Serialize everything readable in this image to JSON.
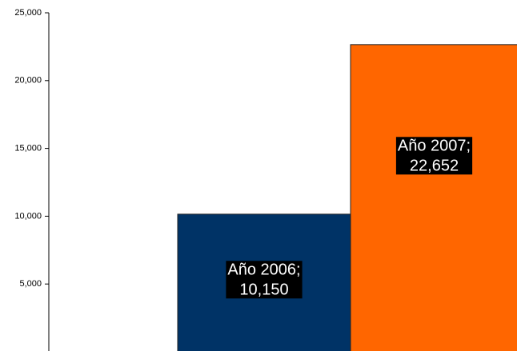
{
  "chart_data": {
    "type": "bar",
    "categories": [
      "Año 2006;",
      "Año 2007;"
    ],
    "values": [
      10150,
      22652
    ],
    "value_labels": [
      "10,150",
      "22,652"
    ],
    "colors": [
      "#003366",
      "#ff6600"
    ],
    "ylim": [
      0,
      25000
    ],
    "yticks": [
      {
        "value": 5000,
        "label": "5,000"
      },
      {
        "value": 10000,
        "label": "10,000"
      },
      {
        "value": 15000,
        "label": "15,000"
      },
      {
        "value": 20000,
        "label": "20,000"
      },
      {
        "value": 25000,
        "label": "25,000"
      }
    ]
  }
}
